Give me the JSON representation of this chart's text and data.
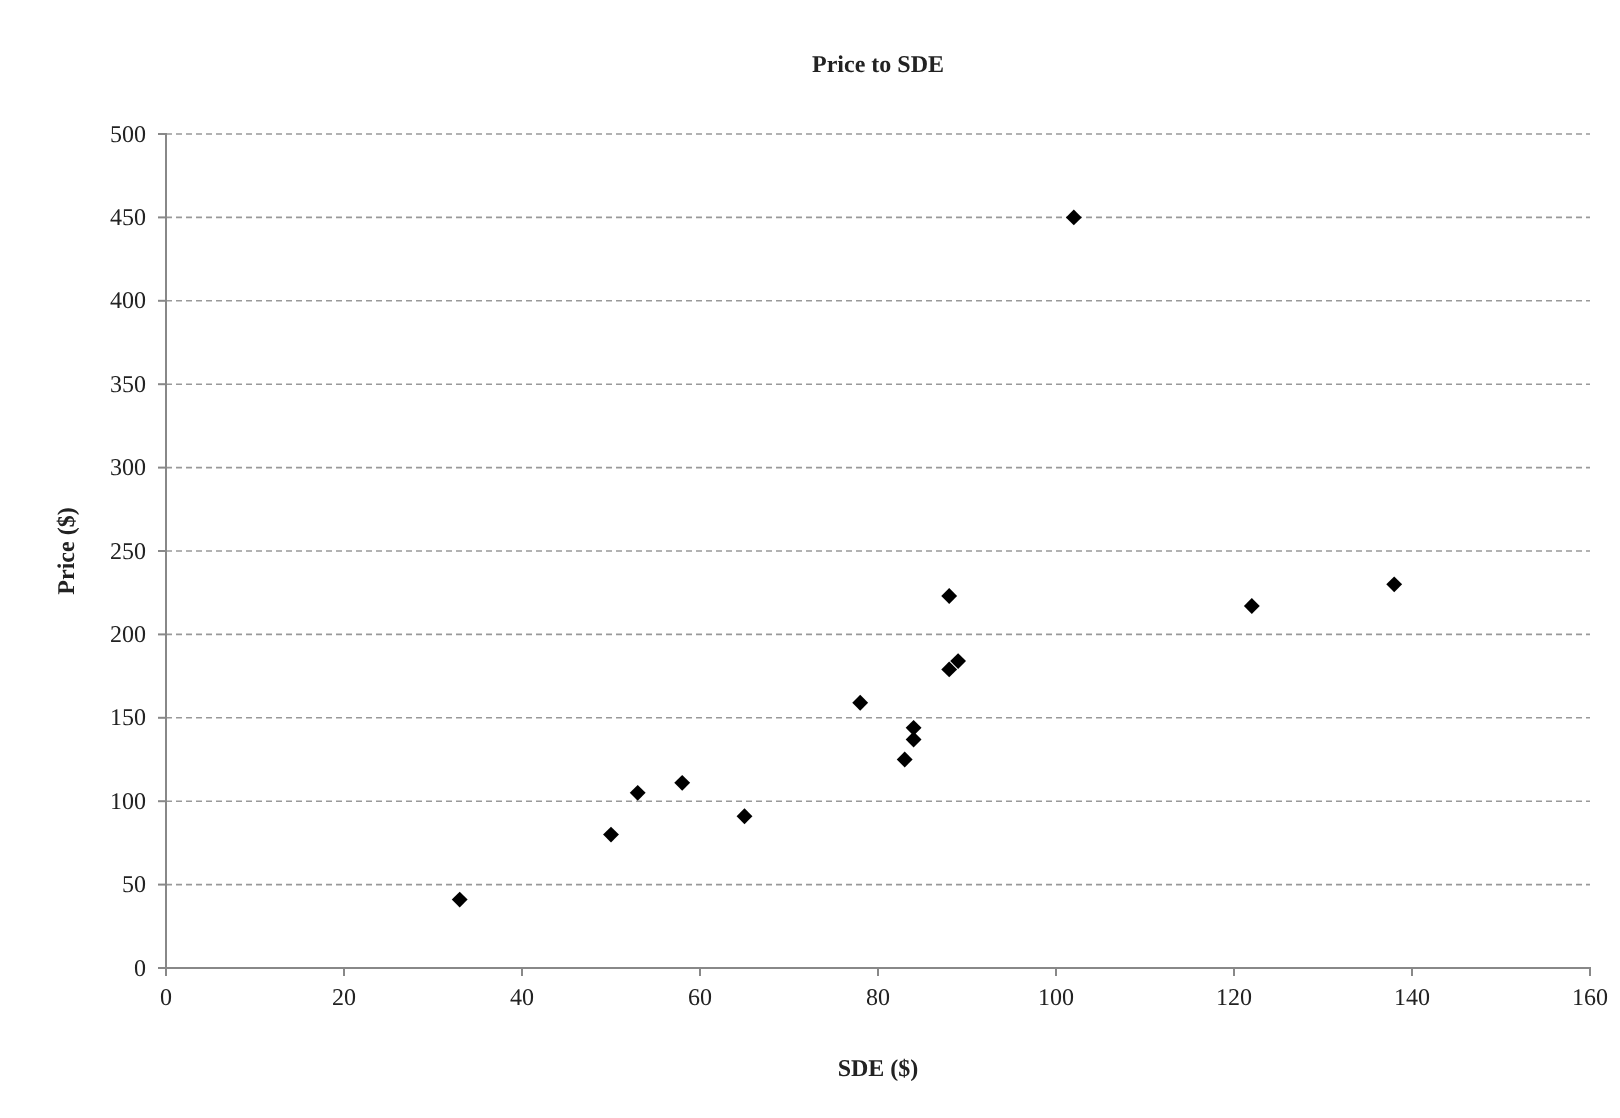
{
  "chart_data": {
    "type": "scatter",
    "title": "Price to SDE",
    "xlabel": "SDE ($)",
    "ylabel": "Price ($)",
    "x": [
      33,
      50,
      53,
      58,
      65,
      78,
      83,
      84,
      84,
      88,
      89,
      88,
      102,
      122,
      138
    ],
    "series": [
      {
        "color": "#000000",
        "values": [
          41,
          80,
          105,
          111,
          91,
          159,
          125,
          144,
          137,
          179,
          184,
          223,
          450,
          217,
          230
        ]
      }
    ],
    "xlim": [
      0,
      160
    ],
    "xticks": [
      0,
      20,
      40,
      60,
      80,
      100,
      120,
      140,
      160
    ],
    "ylim": [
      0,
      500
    ],
    "yticks": [
      0,
      50,
      100,
      150,
      200,
      250,
      300,
      350,
      400,
      450,
      500
    ],
    "grid": "y",
    "marker": "diamond"
  }
}
